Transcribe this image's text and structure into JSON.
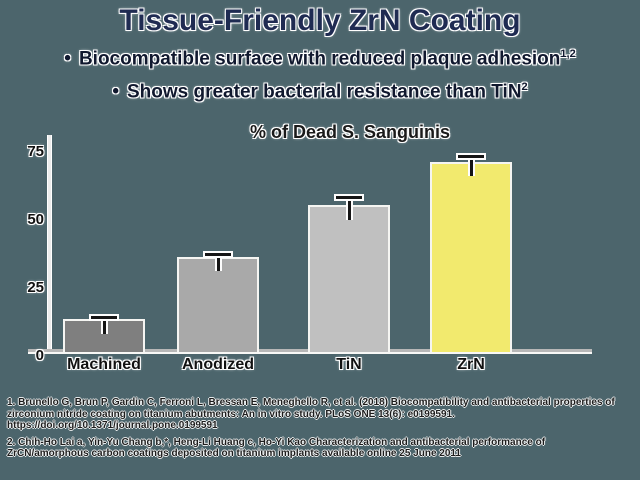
{
  "slide": {
    "title": "Tissue-Friendly ZrN Coating",
    "bullet_char": "•",
    "bullets": [
      {
        "text": "Biocompatible surface with reduced plaque adhesion",
        "sup": "1,2"
      },
      {
        "text": "Shows greater bacterial resistance than TiN",
        "sup": "2"
      }
    ],
    "footnotes": [
      "1. Brunello G, Brun P, Gardin C, Ferroni L, Bressan E, Meneghello R, et al. (2018) Biocompatibility and antibacterial properties of zirconium nitride coating on titanium abutments: An in vitro study. PLoS ONE 13(6): e0199591. https://doi.org/10.1371/journal.pone.0199591",
      "2. Chih-Ho Lai a, Yin-Yu Chang b,*, Heng-Li Huang c, Ho-Yi Kao Characterization and antibacterial performance of ZrCN/amorphous carbon coatings deposited on titanium implants available online 25 June 2011"
    ]
  },
  "colors": {
    "background": "#4c656c",
    "title_text": "#1f2b52",
    "body_text": "#10182e",
    "chart_text": "#111111",
    "highlight_bar": "#f2ea6e"
  },
  "chart_data": {
    "type": "bar",
    "title": "% of Dead S. Sanguinis",
    "categories": [
      "Machined",
      "Anodized",
      "TiN",
      "ZrN"
    ],
    "values": [
      12,
      35,
      54,
      70
    ],
    "errors": [
      2,
      2,
      4,
      3
    ],
    "bar_colors": [
      "#7f7f7f",
      "#a9a9a9",
      "#c0c0c0",
      "#f2ea6e"
    ],
    "xlabel": "",
    "ylabel": "",
    "ylim": [
      0,
      80
    ],
    "yticks": [
      0,
      25,
      50,
      75
    ],
    "grid": false,
    "legend": false
  }
}
